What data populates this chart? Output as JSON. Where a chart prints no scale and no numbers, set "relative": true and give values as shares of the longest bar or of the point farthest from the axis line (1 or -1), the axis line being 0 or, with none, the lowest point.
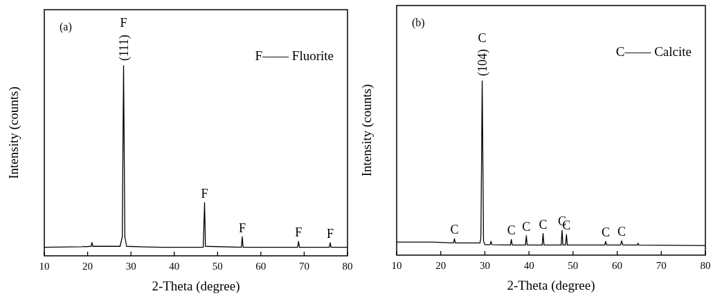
{
  "chart_data": [
    {
      "type": "line",
      "relative": true,
      "xlabel": "2-Theta (degree)",
      "ylabel": "Intensity (counts)",
      "xlim": [
        10,
        80
      ],
      "xticks": [
        10,
        20,
        30,
        40,
        50,
        60,
        70,
        80
      ],
      "tick_labels": "x",
      "grid": false,
      "series": [
        {
          "color": "#000000",
          "x": [
            10,
            18.8,
            19,
            19.2,
            20.8,
            21,
            21.2,
            24.7,
            27.5,
            28.0,
            28.3,
            28.6,
            29,
            33,
            37,
            46.7,
            47.0,
            47.2,
            55.5,
            55.7,
            55.9,
            68.5,
            68.7,
            68.9,
            75.8,
            76,
            76.2,
            80
          ],
          "values": [
            0.045,
            0.048,
            0.05,
            0.048,
            0.05,
            0.07,
            0.05,
            0.05,
            0.05,
            0.1,
            1,
            0.1,
            0.05,
            0.047,
            0.045,
            0.045,
            0.28,
            0.05,
            0.045,
            0.1,
            0.045,
            0.045,
            0.076,
            0.045,
            0.045,
            0.069,
            0.045,
            0.045
          ]
        }
      ],
      "annotations": [
        "(a)",
        "F—— Fluorite",
        {
          "text": "(111)",
          "x": 28.3,
          "y": 1
        },
        {
          "text": "F",
          "x": 28.3,
          "y": 1
        },
        {
          "text": "F",
          "x": 47.0,
          "y": 0.28
        },
        {
          "text": "F",
          "x": 55.7,
          "y": 0.1
        },
        {
          "text": "F",
          "x": 68.7,
          "y": 0.076
        },
        {
          "text": "F",
          "x": 76,
          "y": 0.069
        }
      ]
    },
    {
      "type": "line",
      "relative": true,
      "xlabel": "2-Theta (degree)",
      "ylabel": "Intensity (counts)",
      "xlim": [
        10,
        80
      ],
      "xticks": [
        10,
        20,
        30,
        40,
        50,
        60,
        70,
        80
      ],
      "tick_labels": "x",
      "grid": false,
      "series": [
        {
          "color": "#000000",
          "x": [
            10,
            18,
            22.9,
            23.1,
            23.3,
            28.9,
            29.1,
            29.4,
            29.7,
            30,
            31.2,
            31.4,
            31.6,
            35.8,
            36,
            36.2,
            39.2,
            39.4,
            39.6,
            43.0,
            43.2,
            43.4,
            47.3,
            47.5,
            47.7,
            48.3,
            48.5,
            48.7,
            57.2,
            57.4,
            57.6,
            60.8,
            61,
            61.3,
            64.6,
            64.7,
            64.9,
            80
          ],
          "values": [
            0.075,
            0.075,
            0.07,
            0.095,
            0.07,
            0.07,
            0.1,
            1,
            0.08,
            0.06,
            0.06,
            0.08,
            0.06,
            0.058,
            0.09,
            0.058,
            0.058,
            0.112,
            0.058,
            0.058,
            0.124,
            0.058,
            0.058,
            0.142,
            0.058,
            0.058,
            0.118,
            0.058,
            0.058,
            0.079,
            0.058,
            0.058,
            0.082,
            0.058,
            0.058,
            0.068,
            0.058,
            0.055
          ]
        }
      ],
      "annotations": [
        "(b)",
        "C—— Calcite",
        {
          "text": "(104)",
          "x": 29.4,
          "y": 1
        },
        {
          "text": "C",
          "x": 29.4,
          "y": 1
        },
        {
          "text": "C",
          "x": 23.1,
          "y": 0.095
        },
        {
          "text": "C",
          "x": 36,
          "y": 0.09
        },
        {
          "text": "C",
          "x": 39.4,
          "y": 0.112
        },
        {
          "text": "C",
          "x": 43.2,
          "y": 0.124
        },
        {
          "text": "C",
          "x": 47.5,
          "y": 0.142
        },
        {
          "text": "C",
          "x": 48.5,
          "y": 0.118
        },
        {
          "text": "C",
          "x": 57.4,
          "y": 0.079
        },
        {
          "text": "C",
          "x": 61,
          "y": 0.082
        }
      ]
    }
  ]
}
